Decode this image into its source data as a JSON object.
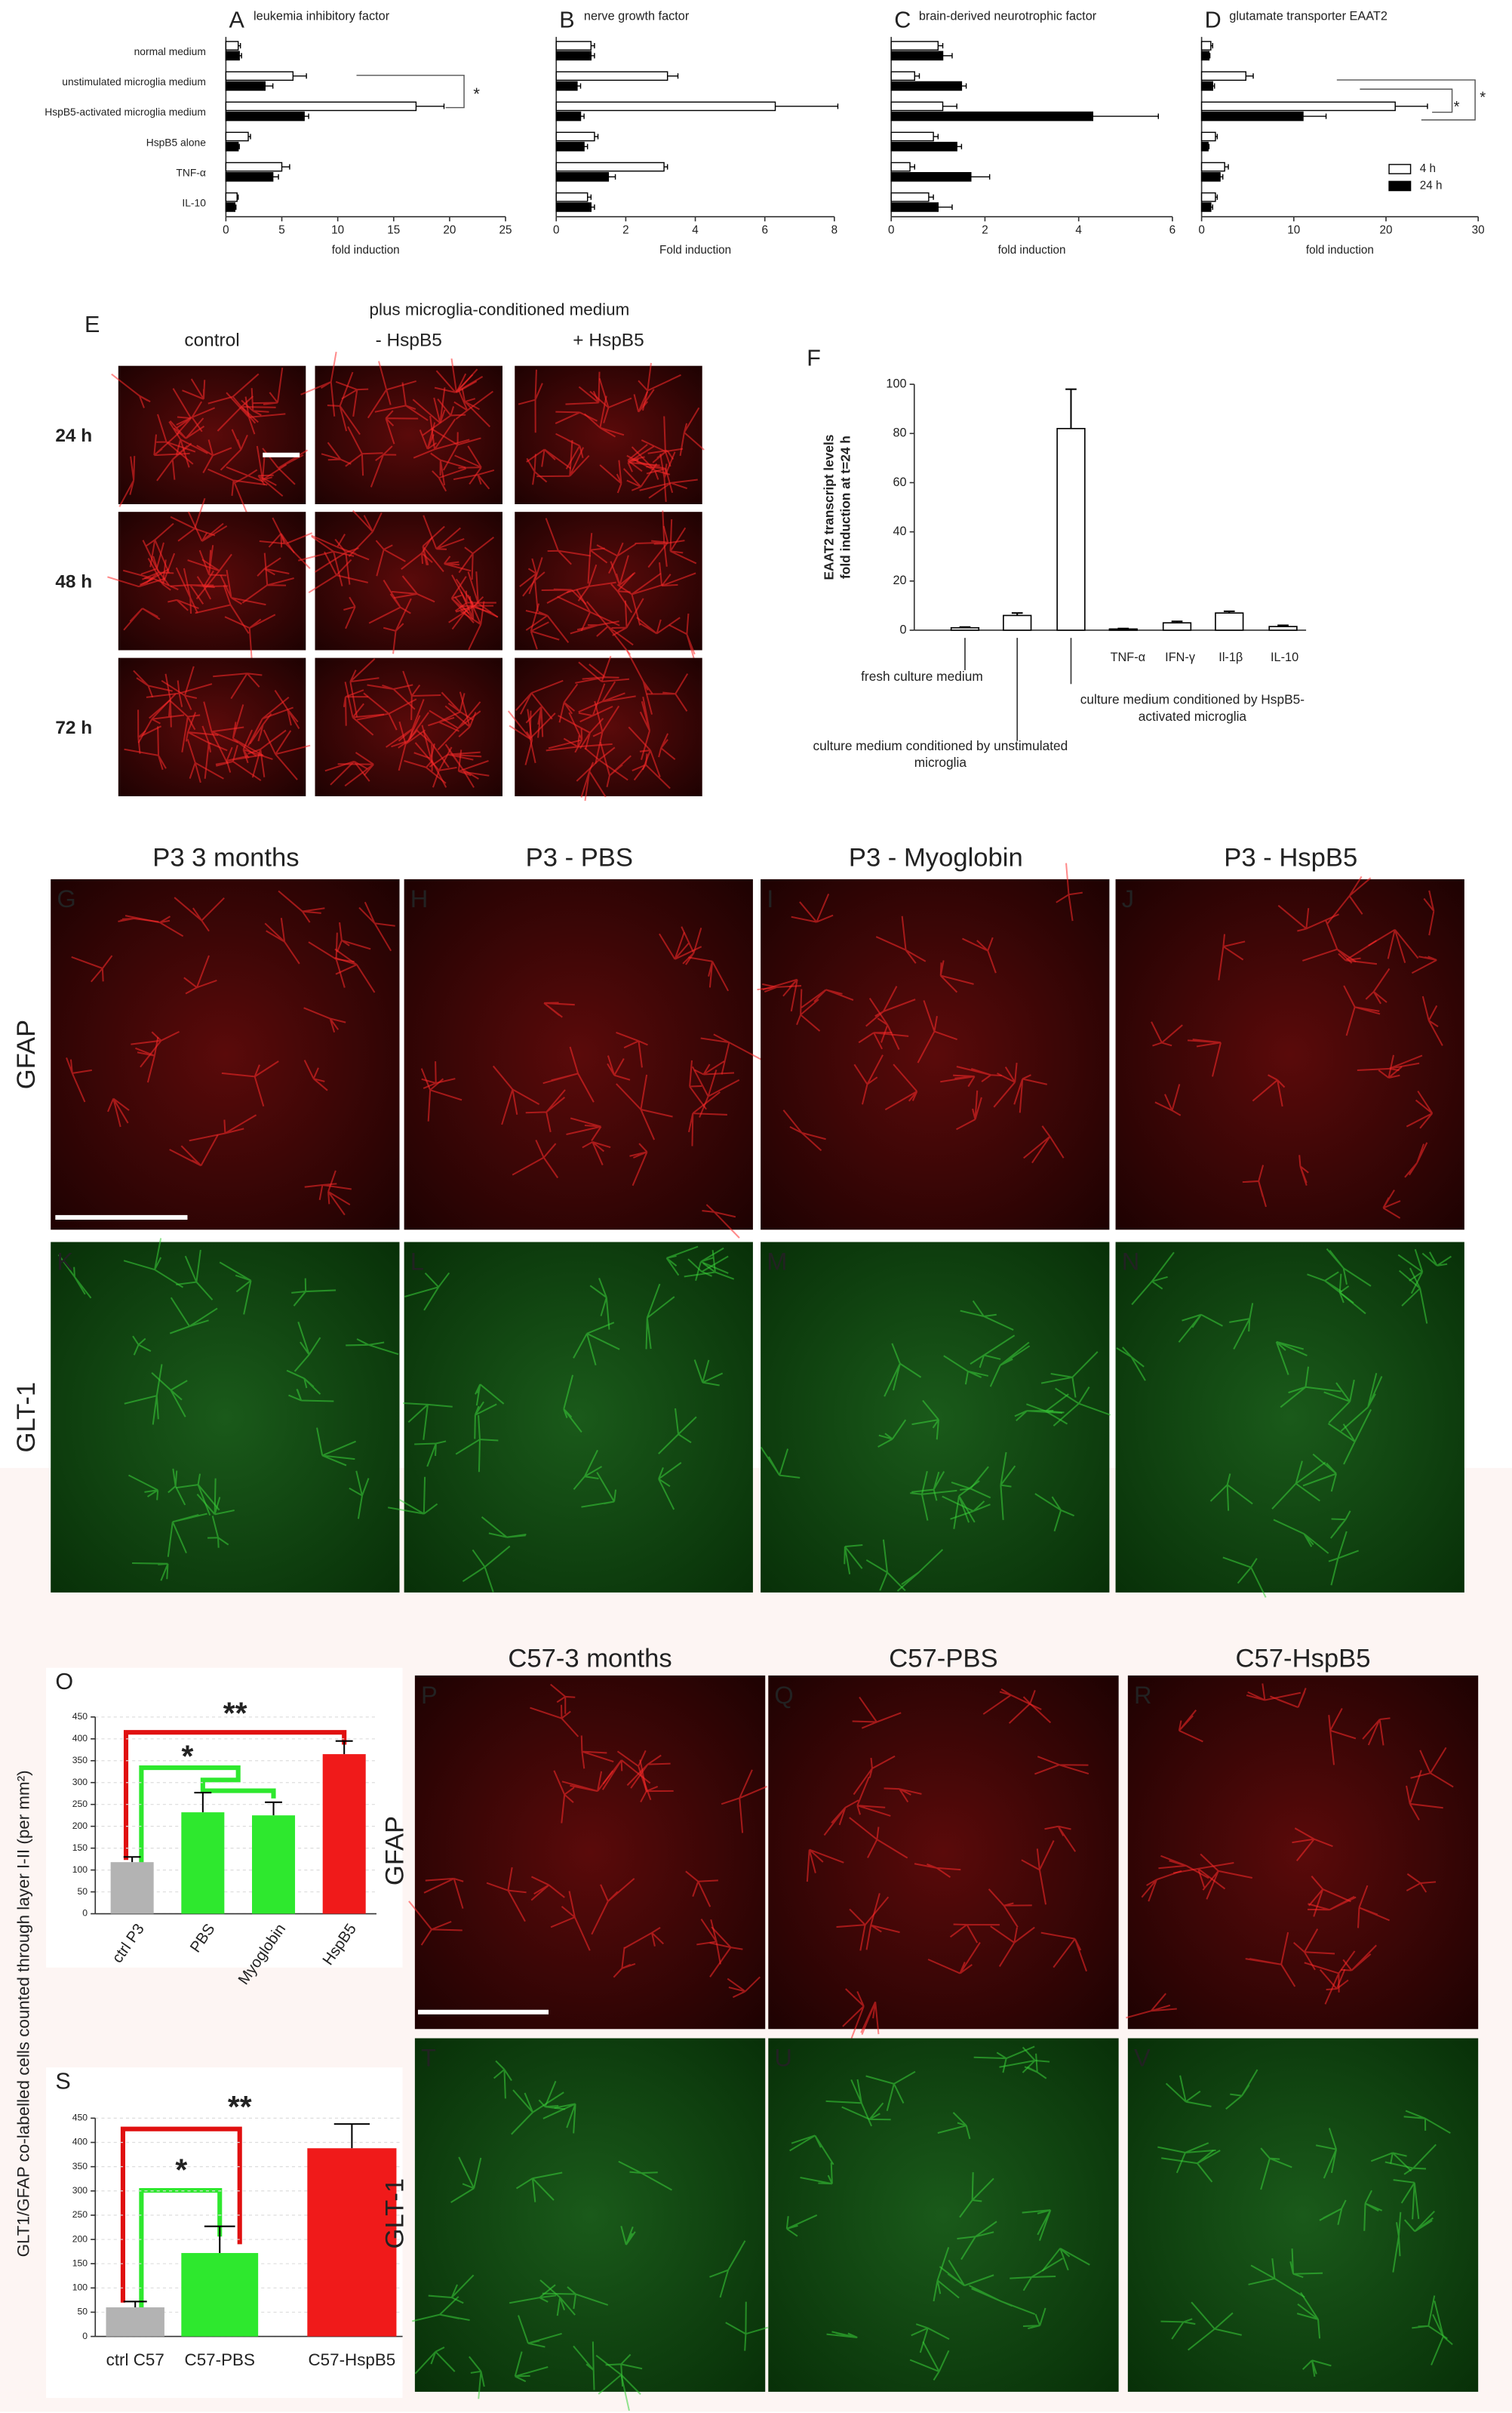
{
  "chart_data": [
    {
      "type": "hbar",
      "label": "A",
      "title": "leukemia inhibitory factor",
      "categories": [
        "normal medium",
        "unstimulated microglia medium",
        "HspB5-activated microglia medium",
        "HspB5 alone",
        "TNF-α",
        "IL-10"
      ],
      "series": [
        {
          "color": "#ffffff",
          "values": [
            1.1,
            6,
            17,
            2,
            5,
            1
          ],
          "errors": [
            0.2,
            1.2,
            2.5,
            0.2,
            0.7,
            0.1
          ]
        },
        {
          "color": "#000000",
          "values": [
            1.2,
            3.5,
            7,
            1.1,
            4.2,
            0.8
          ],
          "errors": [
            0.2,
            0.7,
            0.4,
            0.1,
            0.5,
            0.1
          ]
        }
      ],
      "xlabel": "fold induction",
      "xlim": [
        0,
        25
      ],
      "xticks": [
        0,
        5,
        10,
        15,
        20,
        25
      ],
      "annotations": [
        "*"
      ]
    },
    {
      "type": "hbar",
      "label": "B",
      "title": "nerve growth factor",
      "series": [
        {
          "color": "#ffffff",
          "values": [
            1.0,
            3.2,
            6.3,
            1.1,
            3.1,
            0.9
          ],
          "errors": [
            0.1,
            0.3,
            1.8,
            0.1,
            0.1,
            0.1
          ]
        },
        {
          "color": "#000000",
          "values": [
            1.0,
            0.6,
            0.7,
            0.8,
            1.5,
            1.0
          ],
          "errors": [
            0.1,
            0.1,
            0.1,
            0.1,
            0.2,
            0.1
          ]
        }
      ],
      "xlabel": "Fold induction",
      "xlim": [
        0,
        8
      ],
      "xticks": [
        0,
        2,
        4,
        6,
        8
      ]
    },
    {
      "type": "hbar",
      "label": "C",
      "title": "brain-derived neurotrophic factor",
      "series": [
        {
          "color": "#ffffff",
          "values": [
            1.0,
            0.5,
            1.1,
            0.9,
            0.4,
            0.8
          ],
          "errors": [
            0.1,
            0.1,
            0.3,
            0.1,
            0.1,
            0.1
          ]
        },
        {
          "color": "#000000",
          "values": [
            1.1,
            1.5,
            4.3,
            1.4,
            1.7,
            1.0
          ],
          "errors": [
            0.2,
            0.1,
            1.4,
            0.1,
            0.4,
            0.3
          ]
        }
      ],
      "xlabel": "fold induction",
      "xlim": [
        0,
        6
      ],
      "xticks": [
        0,
        2,
        4,
        6
      ]
    },
    {
      "type": "hbar",
      "label": "D",
      "title": "glutamate transporter EAAT2",
      "series": [
        {
          "name": "4 h",
          "color": "#ffffff",
          "values": [
            1,
            4.8,
            21,
            1.5,
            2.5,
            1.5
          ],
          "errors": [
            0.2,
            0.8,
            3.5,
            0.2,
            0.4,
            0.2
          ]
        },
        {
          "name": "24 h",
          "color": "#000000",
          "values": [
            0.8,
            1.2,
            11,
            0.7,
            2,
            1
          ],
          "errors": [
            0.1,
            0.2,
            2.5,
            0.1,
            0.3,
            0.2
          ]
        }
      ],
      "xlabel": "fold induction",
      "xlim": [
        0,
        30
      ],
      "xticks": [
        0,
        10,
        20,
        30
      ],
      "legend": "lower right",
      "annotations": [
        "*",
        "*"
      ]
    },
    {
      "type": "bar",
      "label": "F",
      "categories": [
        "fresh culture medium",
        "culture medium conditioned by unstimulated microglia",
        "culture medium conditioned by HspB5-activated microglia",
        "TNF-α",
        "IFN-γ",
        "Il-1β",
        "IL-10"
      ],
      "values": [
        1,
        6,
        82,
        0.5,
        3,
        7,
        1.5
      ],
      "errors": [
        0.3,
        1,
        16,
        0.2,
        0.6,
        0.7,
        0.5
      ],
      "colors": [
        "#ffffff",
        "#ffffff",
        "#ffffff",
        "#ffffff",
        "#ffffff",
        "#ffffff",
        "#ffffff"
      ],
      "ylabel": [
        "EAAT2 transcript levels",
        "fold induction at t=24 h"
      ],
      "ylim": [
        0,
        100
      ],
      "yticks": [
        0,
        20,
        40,
        60,
        80,
        100
      ]
    },
    {
      "type": "bar",
      "label": "O",
      "categories": [
        "ctrl P3",
        "PBS",
        "Myoglobin",
        "HspB5"
      ],
      "values": [
        118,
        232,
        225,
        365
      ],
      "errors": [
        12,
        45,
        30,
        30
      ],
      "colors": [
        "#b3b3b3",
        "#2ee82e",
        "#2ee82e",
        "#f01a1a"
      ],
      "ylabel": "GLT1/GFAP co-labelled cells counted through layer I-II (per mm²)",
      "ylim": [
        0,
        450
      ],
      "yticks": [
        0,
        50,
        100,
        150,
        200,
        250,
        300,
        350,
        400,
        450
      ],
      "grid": true,
      "annotations": [
        "**",
        "*"
      ]
    },
    {
      "type": "bar",
      "label": "S",
      "categories": [
        "ctrl C57",
        "C57-PBS",
        "C57-HspB5"
      ],
      "values": [
        60,
        172,
        388
      ],
      "errors": [
        12,
        55,
        50
      ],
      "colors": [
        "#b3b3b3",
        "#2ee82e",
        "#f01a1a"
      ],
      "ylim": [
        0,
        450
      ],
      "yticks": [
        0,
        50,
        100,
        150,
        200,
        250,
        300,
        350,
        400,
        450
      ],
      "grid": true,
      "annotations": [
        "**",
        "*"
      ]
    }
  ],
  "image_panels": {
    "E": {
      "label": "E",
      "title": "plus microglia-conditioned medium",
      "columns": [
        "control",
        "- HspB5",
        "+ HspB5"
      ],
      "rows": [
        "24 h",
        "48 h",
        "72 h"
      ]
    },
    "GN": {
      "columns": [
        "P3 3 months",
        "P3 - PBS",
        "P3 - Myoglobin",
        "P3 - HspB5"
      ],
      "rows": [
        "GFAP",
        "GLT-1"
      ],
      "labels": [
        [
          "G",
          "H",
          "I",
          "J"
        ],
        [
          "K",
          "L",
          "M",
          "N"
        ]
      ]
    },
    "PV": {
      "columns": [
        "C57-3 months",
        "C57-PBS",
        "C57-HspB5"
      ],
      "rows": [
        "GFAP",
        "GLT-1"
      ],
      "labels": [
        [
          "P",
          "Q",
          "R"
        ],
        [
          "T",
          "U",
          "V"
        ]
      ]
    }
  }
}
